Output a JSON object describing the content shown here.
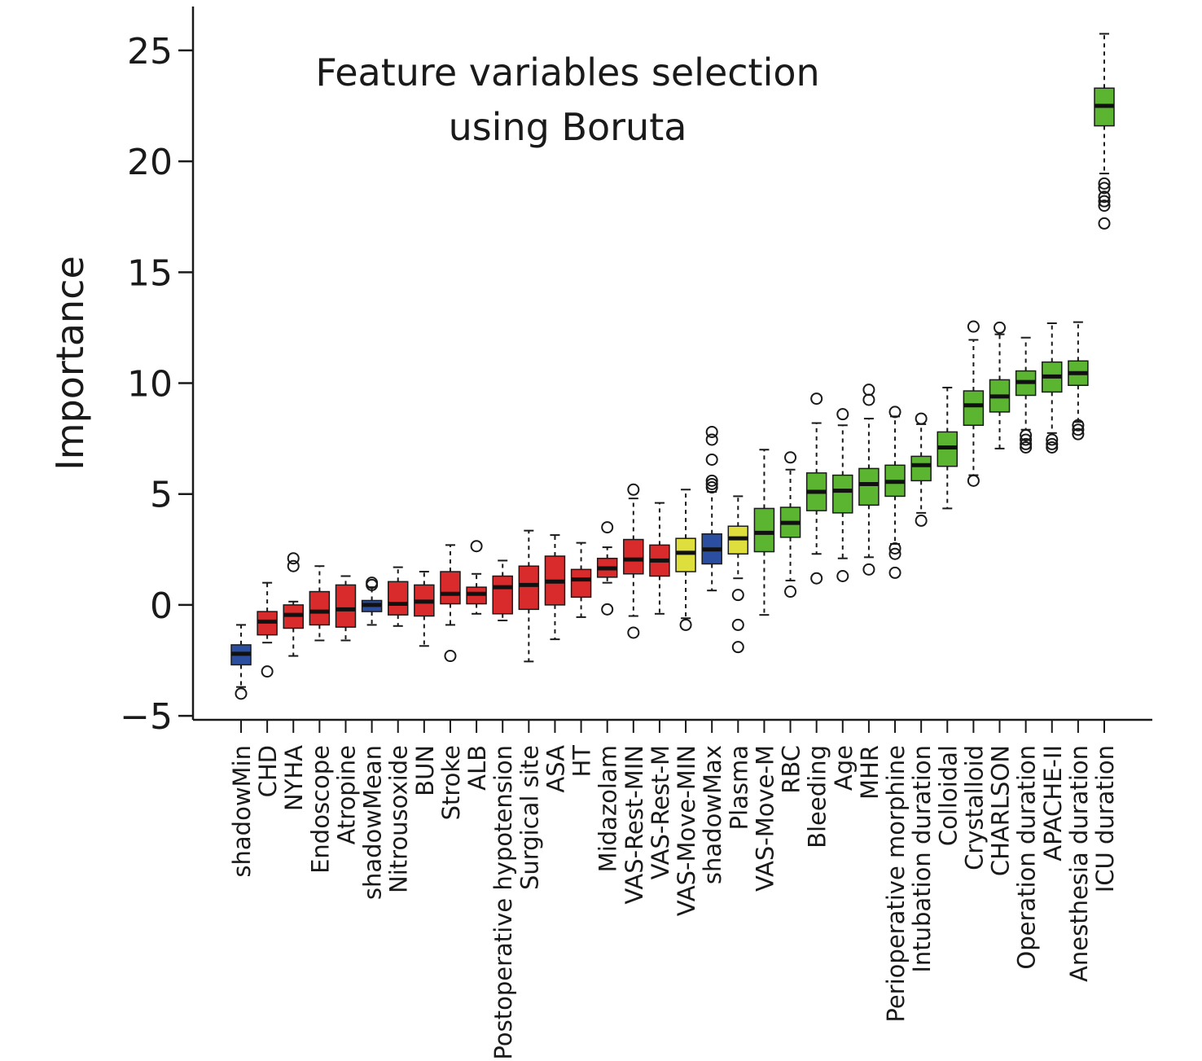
{
  "chart_data": {
    "type": "boxplot",
    "title": [
      "Feature variables selection",
      "using Boruta"
    ],
    "y_label": "Importance",
    "ylim": [
      -5.18,
      26.98
    ],
    "yticks": [
      {
        "value": -5,
        "label": "−5"
      },
      0,
      5,
      10,
      15,
      20,
      25
    ],
    "categories": [
      "shadowMin",
      "CHD",
      "NYHA",
      "Endoscope",
      "Atropine",
      "shadowMean",
      "Nitrousoxide",
      "BUN",
      "Stroke",
      "ALB",
      "Postoperative hypotension",
      "Surgical site",
      "ASA",
      "HT",
      "Midazolam",
      "VAS-Rest-MIN",
      "VAS-Rest-M",
      "VAS-Move-MIN",
      "shadowMax",
      "Plasma",
      "VAS-Move-M",
      "RBC",
      "Bleeding",
      "Age",
      "MHR",
      "Perioperative morphine",
      "Intubation duration",
      "Colloidal",
      "Crystalloid",
      "CHARLSON",
      "Operation duration",
      "APACHE-II",
      "Anesthesia duration",
      "ICU duration"
    ],
    "boxes": [
      {
        "low": -3.7,
        "q1": -2.7,
        "median": -2.2,
        "q3": -1.8,
        "high": -0.9,
        "outliers": [
          -4.0
        ],
        "color": "#2b4ea0"
      },
      {
        "low": -1.7,
        "q1": -1.35,
        "median": -0.75,
        "q3": -0.3,
        "high": 1.0,
        "outliers": [
          -3.0
        ],
        "color": "#d92b2b"
      },
      {
        "low": -2.3,
        "q1": -1.05,
        "median": -0.45,
        "q3": 0.0,
        "high": 0.15,
        "outliers": [
          2.1,
          1.75
        ],
        "color": "#d92b2b"
      },
      {
        "low": -1.6,
        "q1": -0.9,
        "median": -0.3,
        "q3": 0.6,
        "high": 1.75,
        "outliers": [],
        "color": "#d92b2b"
      },
      {
        "low": -1.6,
        "q1": -1.0,
        "median": -0.2,
        "q3": 0.9,
        "high": 1.3,
        "outliers": [],
        "color": "#d92b2b"
      },
      {
        "low": -0.9,
        "q1": -0.3,
        "median": 0.0,
        "q3": 0.2,
        "high": 0.8,
        "outliers": [
          1.0,
          0.9
        ],
        "color": "#2b4ea0"
      },
      {
        "low": -0.95,
        "q1": -0.45,
        "median": 0.05,
        "q3": 1.05,
        "high": 1.7,
        "outliers": [],
        "color": "#d92b2b"
      },
      {
        "low": -1.85,
        "q1": -0.5,
        "median": 0.15,
        "q3": 0.9,
        "high": 1.5,
        "outliers": [],
        "color": "#d92b2b"
      },
      {
        "low": -0.9,
        "q1": 0.05,
        "median": 0.5,
        "q3": 1.5,
        "high": 2.7,
        "outliers": [
          -2.3
        ],
        "color": "#d92b2b"
      },
      {
        "low": -0.4,
        "q1": 0.05,
        "median": 0.5,
        "q3": 0.8,
        "high": 1.4,
        "outliers": [
          2.65
        ],
        "color": "#d92b2b"
      },
      {
        "low": -0.7,
        "q1": -0.4,
        "median": 0.8,
        "q3": 1.3,
        "high": 2.0,
        "outliers": [],
        "color": "#d92b2b"
      },
      {
        "low": -2.55,
        "q1": -0.2,
        "median": 0.9,
        "q3": 1.75,
        "high": 3.35,
        "outliers": [],
        "color": "#d92b2b"
      },
      {
        "low": -1.55,
        "q1": 0.0,
        "median": 1.05,
        "q3": 2.2,
        "high": 3.15,
        "outliers": [],
        "color": "#d92b2b"
      },
      {
        "low": -0.55,
        "q1": 0.35,
        "median": 1.15,
        "q3": 1.6,
        "high": 2.8,
        "outliers": [],
        "color": "#d92b2b"
      },
      {
        "low": 1.0,
        "q1": 1.25,
        "median": 1.65,
        "q3": 2.1,
        "high": 2.6,
        "outliers": [
          3.5,
          -0.2
        ],
        "color": "#d92b2b"
      },
      {
        "low": -0.5,
        "q1": 1.4,
        "median": 2.05,
        "q3": 2.95,
        "high": 4.8,
        "outliers": [
          5.2,
          -1.25
        ],
        "color": "#d92b2b"
      },
      {
        "low": -0.4,
        "q1": 1.3,
        "median": 2.0,
        "q3": 2.7,
        "high": 4.6,
        "outliers": [],
        "color": "#d92b2b"
      },
      {
        "low": -0.6,
        "q1": 1.5,
        "median": 2.35,
        "q3": 3.0,
        "high": 5.2,
        "outliers": [
          -0.9
        ],
        "color": "#dede3c"
      },
      {
        "low": 0.65,
        "q1": 1.85,
        "median": 2.5,
        "q3": 3.2,
        "high": 5.1,
        "outliers": [
          7.8,
          7.45,
          6.55,
          5.6,
          5.45,
          5.3
        ],
        "color": "#2b4ea0"
      },
      {
        "low": 1.2,
        "q1": 2.3,
        "median": 3.0,
        "q3": 3.55,
        "high": 4.9,
        "outliers": [
          0.45,
          -0.9,
          -1.9
        ],
        "color": "#dede3c"
      },
      {
        "low": -0.45,
        "q1": 2.4,
        "median": 3.25,
        "q3": 4.35,
        "high": 7.0,
        "outliers": [],
        "color": "#5cb531"
      },
      {
        "low": 1.1,
        "q1": 3.05,
        "median": 3.7,
        "q3": 4.4,
        "high": 6.1,
        "outliers": [
          6.65,
          0.6
        ],
        "color": "#5cb531"
      },
      {
        "low": 2.3,
        "q1": 4.25,
        "median": 5.1,
        "q3": 5.95,
        "high": 8.2,
        "outliers": [
          9.3,
          1.2
        ],
        "color": "#5cb531"
      },
      {
        "low": 2.1,
        "q1": 4.15,
        "median": 5.15,
        "q3": 5.85,
        "high": 8.1,
        "outliers": [
          8.6,
          1.3
        ],
        "color": "#5cb531"
      },
      {
        "low": 2.15,
        "q1": 4.5,
        "median": 5.45,
        "q3": 6.15,
        "high": 8.4,
        "outliers": [
          9.7,
          9.25,
          1.6
        ],
        "color": "#5cb531"
      },
      {
        "low": 2.75,
        "q1": 4.9,
        "median": 5.55,
        "q3": 6.3,
        "high": 8.5,
        "outliers": [
          8.7,
          2.55,
          2.3,
          1.45
        ],
        "color": "#5cb531"
      },
      {
        "low": 4.15,
        "q1": 5.6,
        "median": 6.3,
        "q3": 6.7,
        "high": 8.15,
        "outliers": [
          8.4,
          3.8
        ],
        "color": "#5cb531"
      },
      {
        "low": 4.35,
        "q1": 6.25,
        "median": 7.1,
        "q3": 7.8,
        "high": 9.8,
        "outliers": [],
        "color": "#5cb531"
      },
      {
        "low": 5.85,
        "q1": 8.1,
        "median": 9.0,
        "q3": 9.65,
        "high": 11.95,
        "outliers": [
          12.55,
          5.6
        ],
        "color": "#5cb531"
      },
      {
        "low": 7.05,
        "q1": 8.7,
        "median": 9.4,
        "q3": 10.15,
        "high": 12.2,
        "outliers": [
          12.5
        ],
        "color": "#5cb531"
      },
      {
        "low": 7.9,
        "q1": 9.45,
        "median": 10.05,
        "q3": 10.55,
        "high": 12.05,
        "outliers": [
          7.65,
          7.45,
          7.25,
          7.1
        ],
        "color": "#5cb531"
      },
      {
        "low": 7.75,
        "q1": 9.6,
        "median": 10.3,
        "q3": 10.95,
        "high": 12.7,
        "outliers": [
          7.45,
          7.25,
          7.1
        ],
        "color": "#5cb531"
      },
      {
        "low": 8.25,
        "q1": 9.9,
        "median": 10.45,
        "q3": 11.0,
        "high": 12.75,
        "outliers": [
          8.1,
          7.9,
          7.7
        ],
        "color": "#5cb531"
      },
      {
        "low": 19.45,
        "q1": 21.6,
        "median": 22.5,
        "q3": 23.3,
        "high": 25.75,
        "outliers": [
          19.0,
          18.8,
          18.4,
          18.2,
          18.0,
          17.2
        ],
        "color": "#5cb531"
      }
    ]
  }
}
